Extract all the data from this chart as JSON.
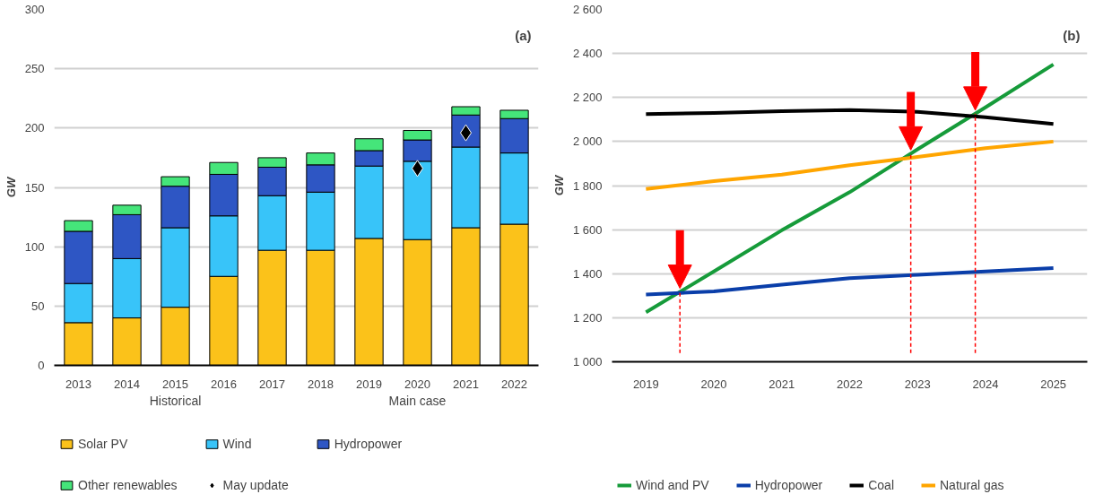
{
  "chart_data": [
    {
      "type": "bar",
      "stacked": true,
      "ylabel": "GW",
      "categories": [
        "2013",
        "2014",
        "2015",
        "2016",
        "2017",
        "2018",
        "2019",
        "2020",
        "2021",
        "2022"
      ],
      "ylim": [
        0,
        300
      ],
      "yticks": [
        0,
        50,
        100,
        150,
        200,
        250,
        300
      ],
      "grid": "y",
      "legend": "bottom",
      "series": [
        {
          "name": "Solar PV",
          "color": "#fbc21a",
          "values": [
            36,
            40,
            49,
            75,
            97,
            97,
            107,
            106,
            116,
            119
          ]
        },
        {
          "name": "Wind",
          "color": "#38c4f9",
          "values": [
            33,
            50,
            67,
            51,
            46,
            49,
            61,
            66,
            68,
            60
          ]
        },
        {
          "name": "Hydropower",
          "color": "#2e56c4",
          "values": [
            44,
            37,
            35,
            35,
            24,
            23,
            13,
            18,
            27,
            29
          ]
        },
        {
          "name": "Other renewables",
          "color": "#45e57a",
          "values": [
            9,
            8,
            8,
            10,
            8,
            10,
            10,
            8,
            7,
            7
          ]
        },
        {
          "name": "May update",
          "type": "scatter",
          "marker": "diamond",
          "color": "#000000",
          "values": [
            null,
            null,
            null,
            null,
            null,
            null,
            null,
            166,
            196,
            null
          ]
        }
      ],
      "annotations": [
        "(a)",
        "Historical",
        "Main case"
      ]
    },
    {
      "type": "line",
      "ylabel": "GW",
      "x": [
        2019,
        2020,
        2021,
        2022,
        2023,
        2024,
        2025
      ],
      "xlim": [
        2018.5,
        2025.5
      ],
      "xticks": [
        {
          "value": 2019,
          "label": "2019"
        },
        {
          "value": 2020,
          "label": "2020"
        },
        {
          "value": 2021,
          "label": "2021"
        },
        {
          "value": 2022,
          "label": "2022"
        },
        {
          "value": 2023,
          "label": "2023"
        },
        {
          "value": 2024,
          "label": "2024"
        },
        {
          "value": 2025,
          "label": "2025"
        }
      ],
      "ylim": [
        1000,
        2600
      ],
      "yticks": [
        {
          "value": 1000,
          "label": "1 000"
        },
        {
          "value": 1200,
          "label": "1 200"
        },
        {
          "value": 1400,
          "label": "1 400"
        },
        {
          "value": 1600,
          "label": "1 600"
        },
        {
          "value": 1800,
          "label": "1 800"
        },
        {
          "value": 2000,
          "label": "2 000"
        },
        {
          "value": 2200,
          "label": "2 200"
        },
        {
          "value": 2400,
          "label": "2 400"
        },
        {
          "value": 2600,
          "label": "2 600"
        }
      ],
      "grid": "y",
      "legend": "bottom",
      "series": [
        {
          "name": "Wind and PV",
          "color": "#169b3a",
          "values": [
            1225,
            1410,
            1597,
            1770,
            1965,
            2155,
            2350
          ]
        },
        {
          "name": "Hydropower",
          "color": "#0a3ea9",
          "values": [
            1305,
            1320,
            1350,
            1380,
            1395,
            1410,
            1425
          ]
        },
        {
          "name": "Coal",
          "color": "#000000",
          "values": [
            2125,
            2130,
            2138,
            2143,
            2135,
            2110,
            2080
          ]
        },
        {
          "name": "Natural gas",
          "color": "#ffa500",
          "values": [
            1785,
            1820,
            1850,
            1893,
            1930,
            1970,
            2000
          ]
        }
      ],
      "ref_lines": [
        {
          "axis": "x",
          "value": 2019.5,
          "color": "#ff0000",
          "line_style": "dashed"
        },
        {
          "axis": "x",
          "value": 2022.9,
          "color": "#ff0000",
          "line_style": "dashed"
        },
        {
          "axis": "x",
          "value": 2023.85,
          "color": "#ff0000",
          "line_style": "dashed"
        }
      ],
      "annotations": [
        "(b)"
      ]
    }
  ]
}
